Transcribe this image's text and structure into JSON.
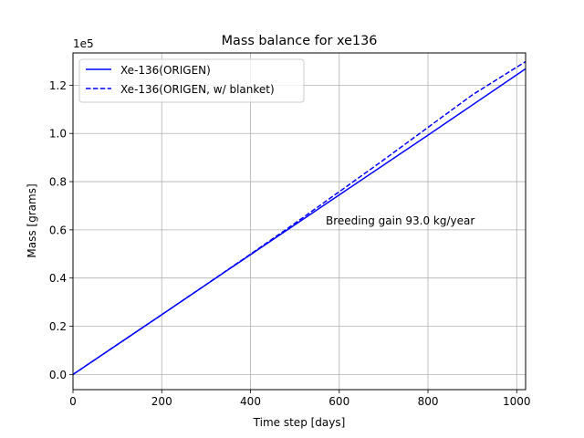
{
  "chart_data": {
    "type": "line",
    "title": "Mass balance for xe136",
    "xlabel": "Time step [days]",
    "ylabel": "Mass [grams]",
    "y_offset_label": "1e5",
    "xlim": [
      0,
      1020
    ],
    "ylim": [
      -0.063,
      1.334
    ],
    "y_scale_factor": 100000,
    "xticks": [
      0,
      200,
      400,
      600,
      800,
      1000
    ],
    "xtick_labels": [
      "0",
      "200",
      "400",
      "600",
      "800",
      "1000"
    ],
    "yticks": [
      0.0,
      0.2,
      0.4,
      0.6,
      0.8,
      1.0,
      1.2
    ],
    "ytick_labels": [
      "0.0",
      "0.2",
      "0.4",
      "0.6",
      "0.8",
      "1.0",
      "1.2"
    ],
    "grid": true,
    "legend_position": "top-left",
    "annotation": "Breeding gain  93.0 kg/year",
    "series": [
      {
        "name": "Xe-136(ORIGEN)",
        "color": "#0000ff",
        "style": "solid",
        "x": [
          0,
          200,
          400,
          600,
          800,
          1020
        ],
        "y": [
          0.0,
          0.248,
          0.497,
          0.745,
          0.993,
          1.268
        ]
      },
      {
        "name": "Xe-136(ORIGEN, w/ blanket)",
        "color": "#0000ff",
        "style": "dashed",
        "x": [
          0,
          200,
          300,
          400,
          500,
          600,
          700,
          800,
          900,
          1020
        ],
        "y": [
          0.0,
          0.248,
          0.373,
          0.499,
          0.627,
          0.758,
          0.89,
          1.025,
          1.16,
          1.298
        ]
      }
    ]
  }
}
